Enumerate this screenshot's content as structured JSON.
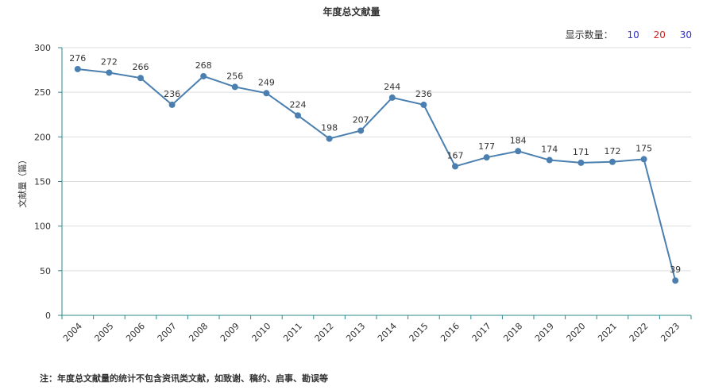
{
  "header": {
    "title": "年度总文献量"
  },
  "controls": {
    "label": "显示数量：",
    "options": [
      {
        "label": "10",
        "color": "#2f2fcc"
      },
      {
        "label": "20",
        "color": "#cc2222"
      },
      {
        "label": "30",
        "color": "#2f2fcc"
      }
    ]
  },
  "footnote": "注：年度总文献量的统计不包含资讯类文献，如致谢、稿约、启事、勘误等",
  "chart_data": {
    "type": "line",
    "title": "年度总文献量",
    "ylabel": "文献量（篇）",
    "xlabel": "",
    "ylim": [
      0,
      300
    ],
    "yticks": [
      0,
      50,
      100,
      150,
      200,
      250,
      300
    ],
    "categories": [
      "2004",
      "2005",
      "2006",
      "2007",
      "2008",
      "2009",
      "2010",
      "2011",
      "2012",
      "2013",
      "2014",
      "2015",
      "2016",
      "2017",
      "2018",
      "2019",
      "2020",
      "2021",
      "2022",
      "2023"
    ],
    "values": [
      276,
      272,
      266,
      236,
      268,
      256,
      249,
      224,
      198,
      207,
      244,
      236,
      167,
      177,
      184,
      174,
      171,
      172,
      175,
      39
    ],
    "line_color": "#4a7fb0",
    "grid": true,
    "legend": "none"
  }
}
